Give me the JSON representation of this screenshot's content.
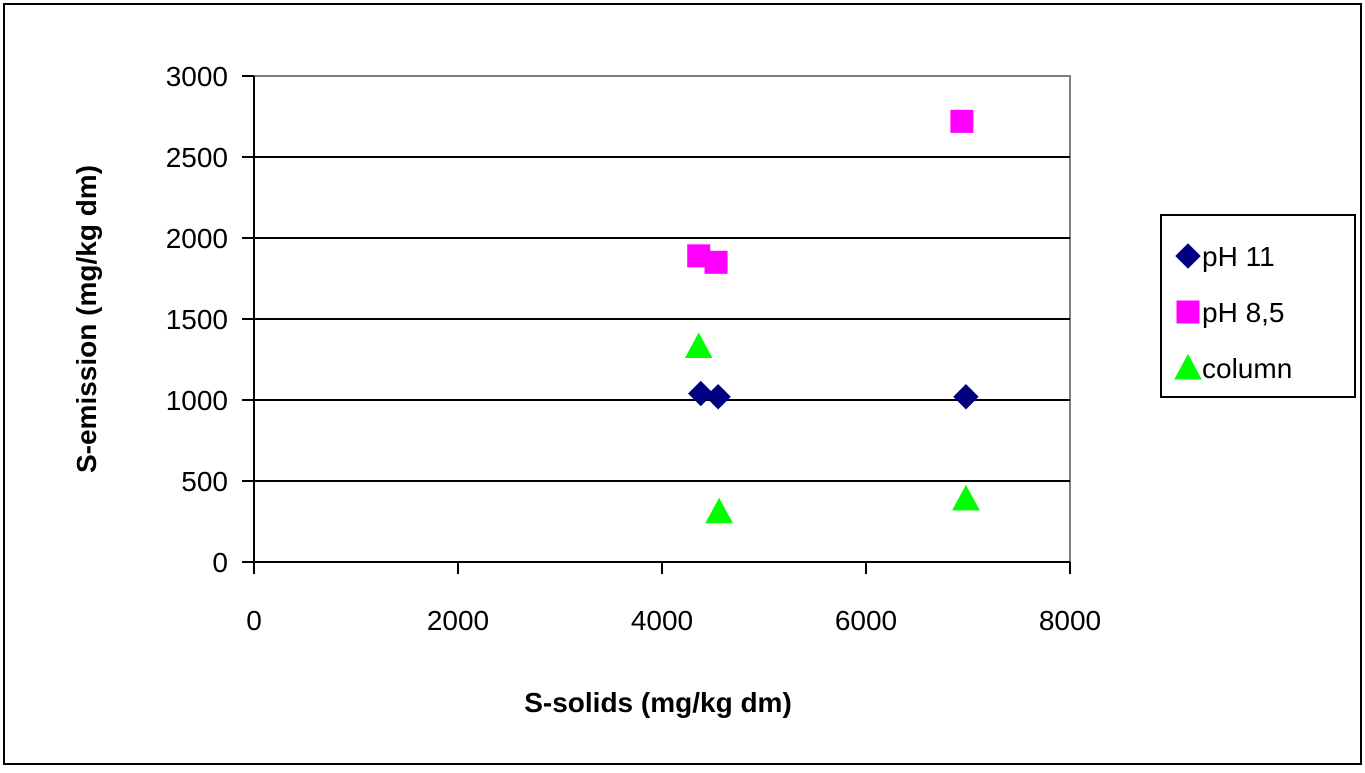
{
  "chart_data": {
    "type": "scatter",
    "xlabel": "S-solids (mg/kg dm)",
    "ylabel": "S-emission (mg/kg dm)",
    "xlim": [
      0,
      8000
    ],
    "ylim": [
      0,
      3000
    ],
    "x_ticks": [
      0,
      2000,
      4000,
      6000,
      8000
    ],
    "y_ticks": [
      0,
      500,
      1000,
      1500,
      2000,
      2500,
      3000
    ],
    "grid": "horizontal",
    "legend_position": "right",
    "series": [
      {
        "name": "pH 11",
        "marker": "diamond",
        "color": "#000080",
        "points": [
          {
            "x": 4380,
            "y": 1040
          },
          {
            "x": 4550,
            "y": 1020
          },
          {
            "x": 6980,
            "y": 1020
          }
        ]
      },
      {
        "name": "pH 8,5",
        "marker": "square",
        "color": "#ff00ff",
        "points": [
          {
            "x": 4360,
            "y": 1890
          },
          {
            "x": 4530,
            "y": 1850
          },
          {
            "x": 6940,
            "y": 2720
          }
        ]
      },
      {
        "name": "column",
        "marker": "triangle",
        "color": "#00ff00",
        "points": [
          {
            "x": 4360,
            "y": 1330
          },
          {
            "x": 4560,
            "y": 310
          },
          {
            "x": 6980,
            "y": 390
          }
        ]
      }
    ]
  }
}
